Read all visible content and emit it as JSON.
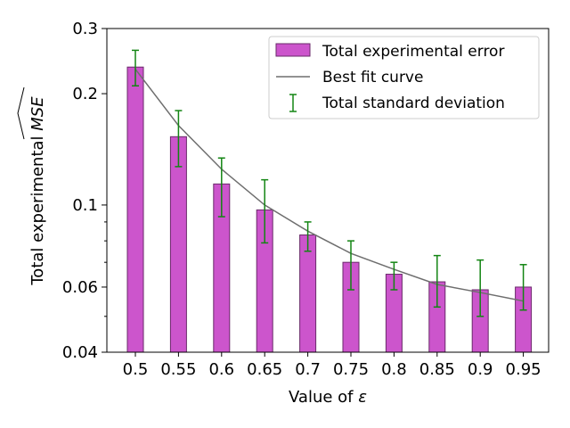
{
  "chart_data": {
    "type": "bar",
    "xlabel_prefix": "Value of ",
    "xlabel_symbol": "ε",
    "ylabel_prefix": "Total experimental ",
    "ylabel_symbol": "MSE",
    "y_scale": "log",
    "ylim": [
      0.04,
      0.3
    ],
    "categories": [
      "0.5",
      "0.55",
      "0.6",
      "0.65",
      "0.7",
      "0.75",
      "0.8",
      "0.85",
      "0.9",
      "0.95"
    ],
    "y_ticks": [
      {
        "value": 0.04,
        "label": "0.04"
      },
      {
        "value": 0.06,
        "label": "0.06"
      },
      {
        "value": 0.1,
        "label": "0.1"
      },
      {
        "value": 0.2,
        "label": "0.2"
      },
      {
        "value": 0.3,
        "label": "0.3"
      }
    ],
    "series": [
      {
        "name": "Total experimental error",
        "kind": "bar",
        "color": "#cc55cc",
        "edge_color": "#6a2a6a",
        "values": [
          0.236,
          0.153,
          0.114,
          0.097,
          0.083,
          0.07,
          0.065,
          0.062,
          0.059,
          0.06
        ]
      },
      {
        "name": "Best fit curve",
        "kind": "line",
        "color": "#6e6e6e",
        "values": [
          0.233,
          0.164,
          0.125,
          0.1,
          0.085,
          0.074,
          0.067,
          0.061,
          0.058,
          0.055
        ]
      },
      {
        "name": "Total standard deviation",
        "kind": "errorbar",
        "color": "#138513",
        "lower": [
          0.21,
          0.127,
          0.093,
          0.079,
          0.075,
          0.059,
          0.059,
          0.053,
          0.05,
          0.052
        ],
        "upper": [
          0.262,
          0.18,
          0.134,
          0.117,
          0.09,
          0.08,
          0.07,
          0.073,
          0.071,
          0.069
        ]
      }
    ],
    "legend_position": "top-right",
    "grid": false
  }
}
